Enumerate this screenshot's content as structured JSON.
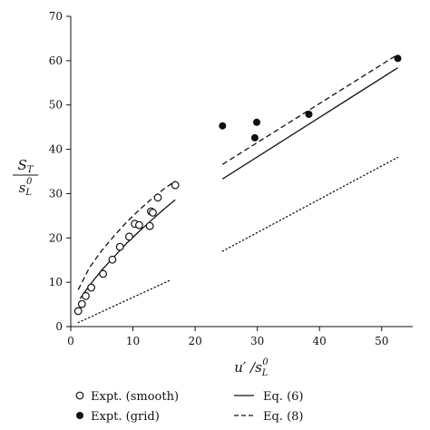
{
  "chart_data": {
    "type": "scatter",
    "xlabel": "u′/s_L^0",
    "ylabel": "S_T / s_L^0",
    "xlim": [
      0,
      55
    ],
    "ylim": [
      0,
      70
    ],
    "xticks": [
      0,
      10,
      20,
      30,
      40,
      50
    ],
    "yticks": [
      0,
      10,
      20,
      30,
      40,
      50,
      60,
      70
    ],
    "grid": false,
    "legend_position": "bottom",
    "series": [
      {
        "name": "Expt. (smooth)",
        "kind": "scatter",
        "marker": "open-circle",
        "x": [
          1.2,
          1.8,
          2.4,
          3.3,
          5.2,
          6.7,
          7.9,
          9.4,
          10.3,
          11.0,
          12.7,
          12.9,
          13.2,
          14.0,
          16.8
        ],
        "y": [
          3.5,
          5.1,
          6.9,
          8.8,
          11.9,
          15.1,
          18.0,
          20.3,
          23.2,
          22.9,
          22.7,
          26.0,
          25.7,
          29.1,
          31.9
        ]
      },
      {
        "name": "Expt. (grid)",
        "kind": "scatter",
        "marker": "filled-circle",
        "x": [
          24.4,
          29.6,
          29.9,
          38.3,
          52.6
        ],
        "y": [
          45.3,
          42.6,
          46.1,
          47.9,
          60.5
        ]
      },
      {
        "name": "Eq. (6)",
        "kind": "line",
        "dash": "solid",
        "segments": [
          {
            "x": [
              1.5,
              3,
              5,
              7,
              9,
              11,
              13,
              15,
              16.8
            ],
            "y": [
              6.3,
              9.3,
              12.8,
              15.8,
              18.8,
              21.5,
              24.0,
              26.5,
              28.6
            ]
          },
          {
            "x": [
              24.4,
              52.6
            ],
            "y": [
              33.3,
              58.4
            ]
          }
        ]
      },
      {
        "name": "Eq. (8)",
        "kind": "line",
        "dash": "dashed",
        "segments": [
          {
            "x": [
              1.2,
              3,
              5,
              7,
              9,
              11,
              13,
              15,
              16.8
            ],
            "y": [
              8.3,
              13.3,
              17.2,
              20.5,
              23.6,
              26.3,
              28.8,
              31.1,
              32.8
            ]
          },
          {
            "x": [
              24.4,
              52.6
            ],
            "y": [
              36.6,
              61.4
            ]
          }
        ]
      },
      {
        "kind": "line",
        "dash": "dotted",
        "segments": [
          {
            "x": [
              1.2,
              16.2
            ],
            "y": [
              0.9,
              10.6
            ]
          },
          {
            "x": [
              24.4,
              52.6
            ],
            "y": [
              17.0,
              38.2
            ]
          }
        ]
      }
    ]
  }
}
